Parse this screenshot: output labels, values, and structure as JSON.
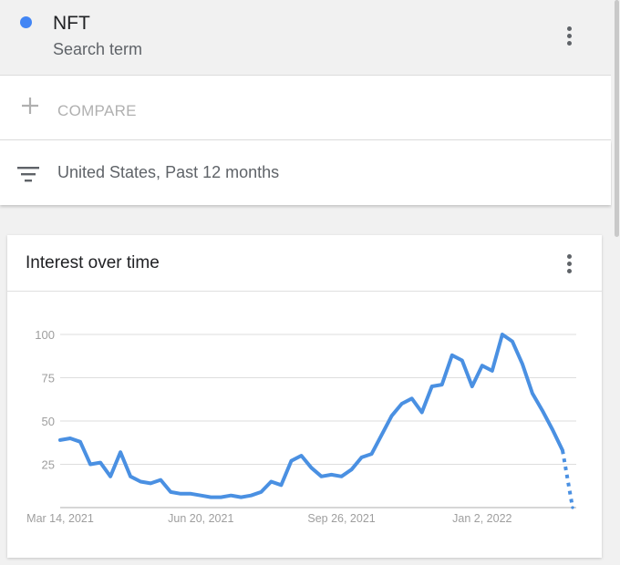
{
  "search_term": {
    "name": "NFT",
    "type_label": "Search term",
    "color": "#4285f4"
  },
  "compare": {
    "label": "COMPARE"
  },
  "filter": {
    "text": "United States, Past 12 months"
  },
  "interest_card": {
    "title": "Interest over time"
  },
  "colors": {
    "series": "#4a90e2",
    "grid": "#dddddd",
    "axis_text": "#9e9e9e"
  },
  "chart_data": {
    "type": "line",
    "title": "Interest over time",
    "xlabel": "",
    "ylabel": "",
    "ylim": [
      0,
      100
    ],
    "y_ticks": [
      25,
      50,
      75,
      100
    ],
    "x_tick_labels": [
      "Mar 14, 2021",
      "Jun 20, 2021",
      "Sep 26, 2021",
      "Jan 2, 2022"
    ],
    "x_tick_indices": [
      0,
      14,
      28,
      42
    ],
    "grid": true,
    "legend": "none",
    "series": [
      {
        "values": [
          39,
          40,
          38,
          25,
          26,
          18,
          32,
          18,
          15,
          14,
          16,
          9,
          8,
          8,
          7,
          6,
          6,
          7,
          6,
          7,
          9,
          15,
          13,
          27,
          30,
          23,
          18,
          19,
          18,
          22,
          29,
          31,
          42,
          53,
          60,
          63,
          55,
          70,
          71,
          88,
          85,
          70,
          82,
          79,
          100,
          96,
          83,
          66,
          56,
          45,
          33,
          0
        ],
        "partial_from_index": 50
      }
    ]
  }
}
